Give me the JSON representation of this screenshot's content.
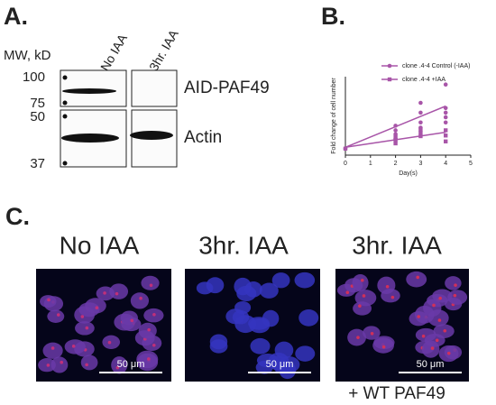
{
  "panel_a": {
    "label": "A.",
    "mw_label": "MW, kD",
    "mw_markers": [
      100,
      75,
      50,
      37
    ],
    "lanes": [
      "No IAA",
      "3hr. IAA"
    ],
    "proteins": [
      "AID-PAF49",
      "Actin"
    ]
  },
  "panel_b": {
    "label": "B."
  },
  "chart_data": {
    "type": "scatter",
    "x_label": "Day(s)",
    "y_label": "Fold change of cell number",
    "xlim": [
      0,
      5
    ],
    "xticks": [
      0,
      1,
      2,
      3,
      4,
      5
    ],
    "ylim": [
      0,
      12
    ],
    "series": [
      {
        "name": "clone .4-4 Control (-IAA)",
        "color": "#a855a8",
        "marker": "circle",
        "x": [
          0,
          2,
          2,
          2,
          2,
          3,
          3,
          3,
          3,
          4,
          4,
          4,
          4,
          4
        ],
        "values": [
          1,
          2.5,
          3.2,
          3.8,
          4.5,
          4.2,
          5,
          6.5,
          8,
          5,
          5.8,
          6.5,
          7.2,
          10.8
        ],
        "fit_x": [
          0,
          4
        ],
        "fit_values": [
          1.2,
          7.5
        ]
      },
      {
        "name": "clone .4-4 +IAA",
        "color": "#a855a8",
        "marker": "square",
        "x": [
          0,
          2,
          2,
          2,
          3,
          3,
          3,
          4,
          4,
          4
        ],
        "values": [
          1,
          1.8,
          2.3,
          2.8,
          2.9,
          3.4,
          3.9,
          2.1,
          3,
          3.8
        ],
        "fit_x": [
          0,
          4
        ],
        "fit_values": [
          1.2,
          3.5
        ]
      }
    ]
  },
  "panel_c": {
    "label": "C.",
    "images": [
      {
        "title": "No IAA",
        "scale_bar": "50 μm"
      },
      {
        "title": "3hr. IAA",
        "scale_bar": "50 μm"
      },
      {
        "title": "3hr. IAA",
        "scale_bar": "50 μm",
        "caption": "+ WT PAF49"
      }
    ]
  }
}
